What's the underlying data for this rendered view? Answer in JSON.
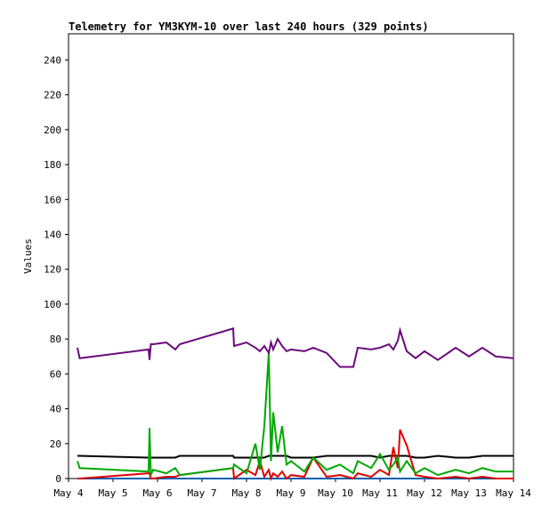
{
  "chart_data": {
    "type": "line",
    "title": "Telemetry for YM3KYM-10 over last 240 hours (329 points)",
    "ylabel": "Values",
    "x": [
      0.2,
      0.25,
      1.8,
      1.82,
      1.85,
      1.9,
      2.2,
      2.4,
      2.5,
      3.7,
      3.72,
      4.0,
      4.2,
      4.3,
      4.4,
      4.5,
      4.55,
      4.6,
      4.7,
      4.8,
      4.9,
      5.0,
      5.3,
      5.5,
      5.8,
      6.1,
      6.4,
      6.5,
      6.8,
      7.0,
      7.2,
      7.3,
      7.4,
      7.45,
      7.6,
      7.8,
      8.0,
      8.3,
      8.7,
      9.0,
      9.3,
      9.6,
      10.0
    ],
    "xlim": [
      0,
      10
    ],
    "xticks": [
      {
        "value": 0,
        "label": "May 4"
      },
      {
        "value": 1,
        "label": "May 5"
      },
      {
        "value": 2,
        "label": "May 6"
      },
      {
        "value": 3,
        "label": "May 7"
      },
      {
        "value": 4,
        "label": "May 8"
      },
      {
        "value": 5,
        "label": "May 9"
      },
      {
        "value": 6,
        "label": "May 10"
      },
      {
        "value": 7,
        "label": "May 11"
      },
      {
        "value": 8,
        "label": "May 12"
      },
      {
        "value": 9,
        "label": "May 13"
      },
      {
        "value": 10,
        "label": "May 14"
      }
    ],
    "ylim": [
      0,
      255
    ],
    "yticks": [
      0,
      20,
      40,
      60,
      80,
      100,
      120,
      140,
      160,
      180,
      200,
      220,
      240
    ],
    "series": [
      {
        "color": "#0060b0",
        "values": [
          0,
          0,
          0,
          0,
          0,
          0,
          0,
          0,
          0,
          0,
          0,
          0,
          0,
          0,
          0,
          0,
          0,
          0,
          0,
          0,
          0,
          0,
          0,
          0,
          0,
          0,
          0,
          0,
          0,
          0,
          0,
          0,
          0,
          0,
          0,
          0,
          0,
          0,
          0,
          0,
          0,
          0,
          0
        ]
      },
      {
        "color": "#000000",
        "values": [
          13,
          13,
          12,
          12,
          12,
          12,
          12,
          12,
          13,
          13,
          12,
          12,
          12,
          12,
          12,
          13,
          13,
          13,
          13,
          13,
          13,
          12,
          12,
          12,
          13,
          13,
          13,
          13,
          13,
          12,
          13,
          13,
          13,
          13,
          13,
          12,
          12,
          13,
          12,
          12,
          13,
          13,
          13
        ]
      },
      {
        "color": "#e00000",
        "values": [
          0,
          0,
          3,
          3,
          0,
          0,
          1,
          1,
          2,
          6,
          0,
          5,
          2,
          10,
          1,
          5,
          0,
          3,
          1,
          4,
          0,
          2,
          1,
          12,
          1,
          2,
          0,
          3,
          1,
          5,
          2,
          18,
          6,
          28,
          19,
          2,
          1,
          0,
          1,
          0,
          1,
          0,
          0
        ]
      },
      {
        "color": "#00a800",
        "values": [
          10,
          6,
          4,
          29,
          2,
          5,
          3,
          6,
          2,
          6,
          8,
          3,
          20,
          5,
          30,
          72,
          10,
          38,
          15,
          30,
          8,
          10,
          4,
          12,
          5,
          8,
          3,
          10,
          6,
          14,
          5,
          8,
          12,
          4,
          10,
          3,
          6,
          2,
          5,
          3,
          6,
          4,
          4
        ]
      },
      {
        "color": "#6a0a7a",
        "values": [
          75,
          69,
          74,
          68,
          77,
          77,
          78,
          74,
          77,
          86,
          76,
          78,
          75,
          73,
          76,
          72,
          78,
          74,
          80,
          76,
          73,
          74,
          73,
          75,
          72,
          64,
          64,
          75,
          74,
          75,
          77,
          74,
          79,
          85,
          73,
          69,
          73,
          68,
          75,
          70,
          75,
          70,
          69
        ]
      }
    ]
  }
}
